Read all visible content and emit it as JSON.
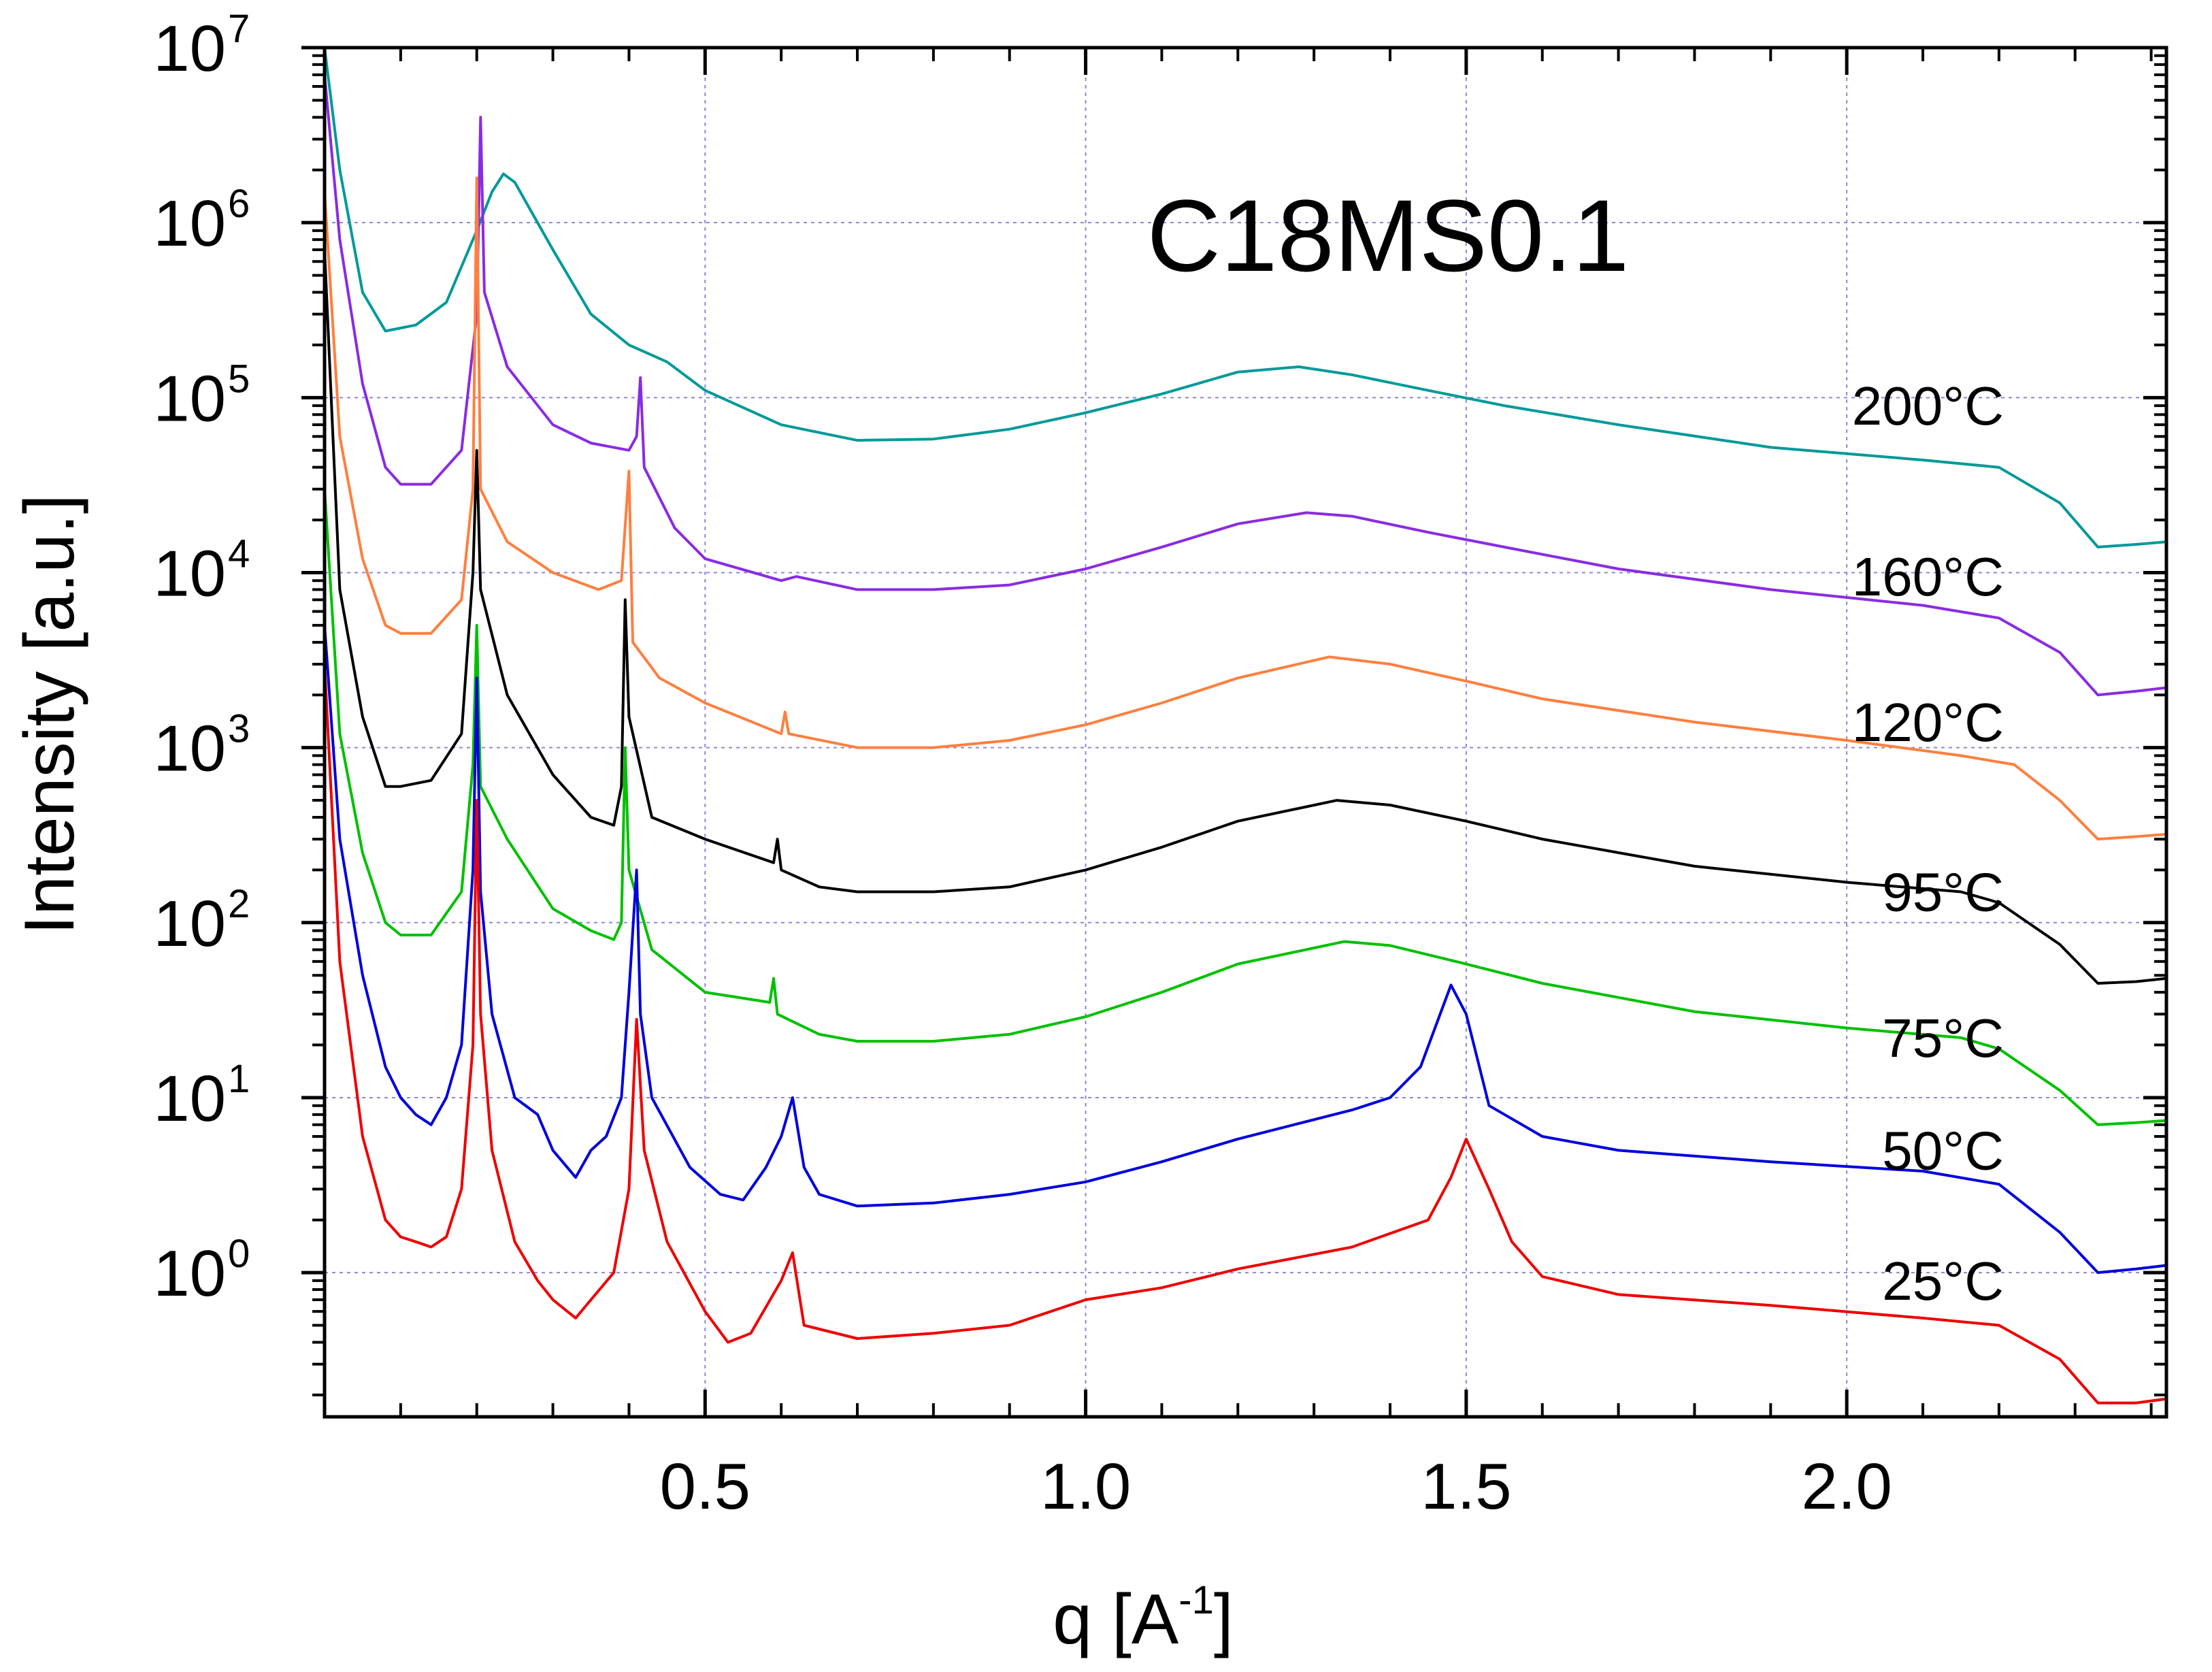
{
  "chart_data": {
    "type": "line",
    "title": "C18MS0.1",
    "xlabel": "q [A",
    "xlabel_superscript": "-1",
    "xlabel_suffix": "]",
    "ylabel": "Intensity [a.u.]",
    "xlim": [
      0.0,
      2.42
    ],
    "ylim": [
      0.15,
      10000000
    ],
    "yscale": "log",
    "grid": true,
    "x_ticks": [
      {
        "value": 0.5,
        "label": "0.5"
      },
      {
        "value": 1.0,
        "label": "1.0"
      },
      {
        "value": 1.5,
        "label": "1.5"
      },
      {
        "value": 2.0,
        "label": "2.0"
      }
    ],
    "y_ticks": [
      {
        "value": 1,
        "base": "10",
        "exp": "0"
      },
      {
        "value": 10,
        "base": "10",
        "exp": "1"
      },
      {
        "value": 100,
        "base": "10",
        "exp": "2"
      },
      {
        "value": 1000,
        "base": "10",
        "exp": "3"
      },
      {
        "value": 10000,
        "base": "10",
        "exp": "4"
      },
      {
        "value": 100000,
        "base": "10",
        "exp": "5"
      },
      {
        "value": 1000000,
        "base": "10",
        "exp": "6"
      },
      {
        "value": 10000000,
        "base": "10",
        "exp": "7"
      }
    ],
    "series": [
      {
        "name": "200°C",
        "color": "#009999",
        "label_value": 90000,
        "points": [
          [
            0.0,
            10000000
          ],
          [
            0.02,
            2000000
          ],
          [
            0.05,
            400000
          ],
          [
            0.08,
            240000
          ],
          [
            0.12,
            260000
          ],
          [
            0.16,
            350000
          ],
          [
            0.2,
            900000
          ],
          [
            0.22,
            1500000
          ],
          [
            0.235,
            1900000
          ],
          [
            0.25,
            1700000
          ],
          [
            0.3,
            700000
          ],
          [
            0.35,
            300000
          ],
          [
            0.4,
            200000
          ],
          [
            0.45,
            160000
          ],
          [
            0.5,
            110000
          ],
          [
            0.6,
            70000
          ],
          [
            0.7,
            57000
          ],
          [
            0.8,
            58000
          ],
          [
            0.9,
            66000
          ],
          [
            1.0,
            82000
          ],
          [
            1.1,
            105000
          ],
          [
            1.2,
            140000
          ],
          [
            1.28,
            150000
          ],
          [
            1.35,
            135000
          ],
          [
            1.45,
            110000
          ],
          [
            1.55,
            90000
          ],
          [
            1.7,
            70000
          ],
          [
            1.9,
            52000
          ],
          [
            2.1,
            44000
          ],
          [
            2.2,
            40000
          ],
          [
            2.28,
            25000
          ],
          [
            2.33,
            14000
          ],
          [
            2.38,
            14500
          ],
          [
            2.42,
            15000
          ]
        ]
      },
      {
        "name": "160°C",
        "color": "#8a2be2",
        "label_value": 9500,
        "points": [
          [
            0.0,
            7000000
          ],
          [
            0.02,
            800000
          ],
          [
            0.05,
            120000
          ],
          [
            0.08,
            40000
          ],
          [
            0.1,
            32000
          ],
          [
            0.14,
            32000
          ],
          [
            0.18,
            50000
          ],
          [
            0.2,
            300000
          ],
          [
            0.205,
            4000000
          ],
          [
            0.21,
            400000
          ],
          [
            0.24,
            150000
          ],
          [
            0.3,
            70000
          ],
          [
            0.35,
            55000
          ],
          [
            0.4,
            50000
          ],
          [
            0.41,
            60000
          ],
          [
            0.415,
            130000
          ],
          [
            0.42,
            40000
          ],
          [
            0.46,
            18000
          ],
          [
            0.5,
            12000
          ],
          [
            0.6,
            9000
          ],
          [
            0.62,
            9500
          ],
          [
            0.7,
            8000
          ],
          [
            0.8,
            8000
          ],
          [
            0.9,
            8500
          ],
          [
            1.0,
            10500
          ],
          [
            1.1,
            14000
          ],
          [
            1.2,
            19000
          ],
          [
            1.29,
            22000
          ],
          [
            1.35,
            21000
          ],
          [
            1.45,
            17000
          ],
          [
            1.55,
            14000
          ],
          [
            1.7,
            10500
          ],
          [
            1.9,
            8000
          ],
          [
            2.1,
            6500
          ],
          [
            2.2,
            5500
          ],
          [
            2.28,
            3500
          ],
          [
            2.33,
            2000
          ],
          [
            2.38,
            2100
          ],
          [
            2.42,
            2200
          ]
        ]
      },
      {
        "name": "120°C",
        "color": "#ff7f3f",
        "label_value": 1400,
        "points": [
          [
            0.0,
            1500000
          ],
          [
            0.02,
            60000
          ],
          [
            0.05,
            12000
          ],
          [
            0.08,
            5000
          ],
          [
            0.1,
            4500
          ],
          [
            0.14,
            4500
          ],
          [
            0.18,
            7000
          ],
          [
            0.195,
            30000
          ],
          [
            0.2,
            1800000
          ],
          [
            0.205,
            30000
          ],
          [
            0.24,
            15000
          ],
          [
            0.3,
            10000
          ],
          [
            0.36,
            8000
          ],
          [
            0.39,
            9000
          ],
          [
            0.4,
            38000
          ],
          [
            0.405,
            4000
          ],
          [
            0.44,
            2500
          ],
          [
            0.5,
            1800
          ],
          [
            0.6,
            1200
          ],
          [
            0.605,
            1600
          ],
          [
            0.61,
            1200
          ],
          [
            0.7,
            1000
          ],
          [
            0.8,
            1000
          ],
          [
            0.9,
            1100
          ],
          [
            1.0,
            1350
          ],
          [
            1.1,
            1800
          ],
          [
            1.2,
            2500
          ],
          [
            1.32,
            3300
          ],
          [
            1.4,
            3000
          ],
          [
            1.5,
            2400
          ],
          [
            1.6,
            1900
          ],
          [
            1.8,
            1400
          ],
          [
            2.0,
            1100
          ],
          [
            2.15,
            900
          ],
          [
            2.22,
            800
          ],
          [
            2.28,
            500
          ],
          [
            2.33,
            300
          ],
          [
            2.38,
            310
          ],
          [
            2.42,
            320
          ]
        ]
      },
      {
        "name": "95°C",
        "color": "#000000",
        "label_value": 150,
        "points": [
          [
            0.0,
            700000
          ],
          [
            0.02,
            8000
          ],
          [
            0.05,
            1500
          ],
          [
            0.08,
            600
          ],
          [
            0.1,
            600
          ],
          [
            0.14,
            650
          ],
          [
            0.18,
            1200
          ],
          [
            0.195,
            10000
          ],
          [
            0.2,
            50000
          ],
          [
            0.205,
            8000
          ],
          [
            0.24,
            2000
          ],
          [
            0.3,
            700
          ],
          [
            0.35,
            400
          ],
          [
            0.38,
            360
          ],
          [
            0.39,
            600
          ],
          [
            0.395,
            7000
          ],
          [
            0.4,
            1500
          ],
          [
            0.43,
            400
          ],
          [
            0.5,
            300
          ],
          [
            0.59,
            220
          ],
          [
            0.595,
            300
          ],
          [
            0.6,
            200
          ],
          [
            0.65,
            160
          ],
          [
            0.7,
            150
          ],
          [
            0.8,
            150
          ],
          [
            0.9,
            160
          ],
          [
            1.0,
            200
          ],
          [
            1.1,
            270
          ],
          [
            1.2,
            380
          ],
          [
            1.33,
            500
          ],
          [
            1.4,
            470
          ],
          [
            1.5,
            380
          ],
          [
            1.6,
            300
          ],
          [
            1.8,
            210
          ],
          [
            2.0,
            170
          ],
          [
            2.15,
            150
          ],
          [
            2.2,
            130
          ],
          [
            2.28,
            75
          ],
          [
            2.33,
            45
          ],
          [
            2.38,
            46
          ],
          [
            2.42,
            48
          ]
        ]
      },
      {
        "name": "75°C",
        "color": "#00c000",
        "label_value": 22,
        "points": [
          [
            0.0,
            30000
          ],
          [
            0.02,
            1200
          ],
          [
            0.05,
            250
          ],
          [
            0.08,
            100
          ],
          [
            0.1,
            85
          ],
          [
            0.14,
            85
          ],
          [
            0.18,
            150
          ],
          [
            0.195,
            800
          ],
          [
            0.2,
            5000
          ],
          [
            0.205,
            600
          ],
          [
            0.24,
            300
          ],
          [
            0.3,
            120
          ],
          [
            0.35,
            90
          ],
          [
            0.38,
            80
          ],
          [
            0.39,
            100
          ],
          [
            0.395,
            1000
          ],
          [
            0.4,
            200
          ],
          [
            0.43,
            70
          ],
          [
            0.5,
            40
          ],
          [
            0.585,
            35
          ],
          [
            0.59,
            48
          ],
          [
            0.595,
            30
          ],
          [
            0.65,
            23
          ],
          [
            0.7,
            21
          ],
          [
            0.8,
            21
          ],
          [
            0.9,
            23
          ],
          [
            1.0,
            29
          ],
          [
            1.1,
            40
          ],
          [
            1.2,
            58
          ],
          [
            1.34,
            78
          ],
          [
            1.4,
            74
          ],
          [
            1.5,
            58
          ],
          [
            1.6,
            45
          ],
          [
            1.8,
            31
          ],
          [
            2.0,
            25
          ],
          [
            2.15,
            22
          ],
          [
            2.2,
            19
          ],
          [
            2.28,
            11
          ],
          [
            2.33,
            7
          ],
          [
            2.38,
            7.2
          ],
          [
            2.42,
            7.4
          ]
        ]
      },
      {
        "name": "50°C",
        "color": "#0000dd",
        "label_value": 5,
        "points": [
          [
            0.0,
            5000
          ],
          [
            0.02,
            300
          ],
          [
            0.05,
            50
          ],
          [
            0.08,
            15
          ],
          [
            0.1,
            10
          ],
          [
            0.12,
            8
          ],
          [
            0.14,
            7
          ],
          [
            0.16,
            10
          ],
          [
            0.18,
            20
          ],
          [
            0.195,
            200
          ],
          [
            0.2,
            2500
          ],
          [
            0.205,
            150
          ],
          [
            0.22,
            30
          ],
          [
            0.25,
            10
          ],
          [
            0.28,
            8
          ],
          [
            0.3,
            5
          ],
          [
            0.33,
            3.5
          ],
          [
            0.35,
            5
          ],
          [
            0.37,
            6
          ],
          [
            0.39,
            10
          ],
          [
            0.4,
            40
          ],
          [
            0.41,
            200
          ],
          [
            0.415,
            30
          ],
          [
            0.43,
            10
          ],
          [
            0.48,
            4
          ],
          [
            0.52,
            2.8
          ],
          [
            0.55,
            2.6
          ],
          [
            0.58,
            4
          ],
          [
            0.6,
            6
          ],
          [
            0.615,
            10
          ],
          [
            0.63,
            4
          ],
          [
            0.65,
            2.8
          ],
          [
            0.7,
            2.4
          ],
          [
            0.8,
            2.5
          ],
          [
            0.9,
            2.8
          ],
          [
            1.0,
            3.3
          ],
          [
            1.1,
            4.3
          ],
          [
            1.2,
            5.8
          ],
          [
            1.35,
            8.5
          ],
          [
            1.4,
            10
          ],
          [
            1.44,
            15
          ],
          [
            1.48,
            44
          ],
          [
            1.5,
            30
          ],
          [
            1.53,
            9
          ],
          [
            1.6,
            6
          ],
          [
            1.7,
            5
          ],
          [
            1.9,
            4.3
          ],
          [
            2.1,
            3.8
          ],
          [
            2.2,
            3.2
          ],
          [
            2.28,
            1.7
          ],
          [
            2.33,
            1.0
          ],
          [
            2.38,
            1.05
          ],
          [
            2.42,
            1.1
          ]
        ]
      },
      {
        "name": "25°C",
        "color": "#ee0000",
        "label_value": 0.9,
        "points": [
          [
            0.0,
            3000
          ],
          [
            0.02,
            60
          ],
          [
            0.05,
            6
          ],
          [
            0.08,
            2
          ],
          [
            0.1,
            1.6
          ],
          [
            0.12,
            1.5
          ],
          [
            0.14,
            1.4
          ],
          [
            0.16,
            1.6
          ],
          [
            0.18,
            3
          ],
          [
            0.195,
            20
          ],
          [
            0.2,
            500
          ],
          [
            0.205,
            30
          ],
          [
            0.22,
            5
          ],
          [
            0.25,
            1.5
          ],
          [
            0.28,
            0.9
          ],
          [
            0.3,
            0.7
          ],
          [
            0.33,
            0.55
          ],
          [
            0.35,
            0.7
          ],
          [
            0.38,
            1.0
          ],
          [
            0.4,
            3
          ],
          [
            0.41,
            28
          ],
          [
            0.42,
            5
          ],
          [
            0.45,
            1.5
          ],
          [
            0.5,
            0.6
          ],
          [
            0.53,
            0.4
          ],
          [
            0.56,
            0.45
          ],
          [
            0.6,
            0.9
          ],
          [
            0.615,
            1.3
          ],
          [
            0.63,
            0.5
          ],
          [
            0.7,
            0.42
          ],
          [
            0.8,
            0.45
          ],
          [
            0.9,
            0.5
          ],
          [
            1.0,
            0.7
          ],
          [
            1.1,
            0.82
          ],
          [
            1.2,
            1.05
          ],
          [
            1.35,
            1.4
          ],
          [
            1.45,
            2.0
          ],
          [
            1.48,
            3.5
          ],
          [
            1.5,
            5.8
          ],
          [
            1.53,
            3
          ],
          [
            1.56,
            1.5
          ],
          [
            1.6,
            0.95
          ],
          [
            1.7,
            0.75
          ],
          [
            1.9,
            0.65
          ],
          [
            2.1,
            0.55
          ],
          [
            2.2,
            0.5
          ],
          [
            2.28,
            0.32
          ],
          [
            2.33,
            0.18
          ],
          [
            2.38,
            0.18
          ],
          [
            2.42,
            0.19
          ]
        ]
      }
    ]
  }
}
